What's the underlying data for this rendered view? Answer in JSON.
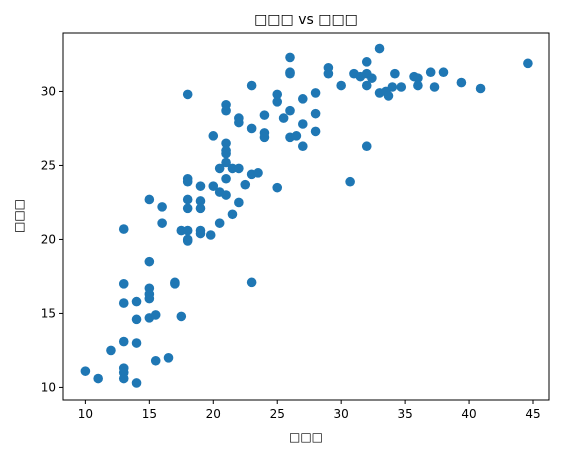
{
  "chart_data": {
    "type": "scatter",
    "title": "□□□ vs □□□",
    "xlabel": "□□□",
    "ylabel": "□□□",
    "xlim": [
      8.25,
      46.25
    ],
    "ylim": [
      9.15,
      33.95
    ],
    "xticks": [
      10,
      15,
      20,
      25,
      30,
      35,
      40,
      45
    ],
    "yticks": [
      10,
      15,
      20,
      25,
      30
    ],
    "grid": false,
    "marker_color": "#1f77b4",
    "points": [
      [
        10,
        11.1
      ],
      [
        11,
        10.6
      ],
      [
        12,
        12.5
      ],
      [
        13,
        20.7
      ],
      [
        13,
        17.0
      ],
      [
        13,
        15.7
      ],
      [
        13,
        13.1
      ],
      [
        13,
        11.3
      ],
      [
        13,
        11.0
      ],
      [
        13,
        10.6
      ],
      [
        14,
        15.8
      ],
      [
        14,
        14.6
      ],
      [
        14,
        13.0
      ],
      [
        14,
        10.3
      ],
      [
        15,
        22.7
      ],
      [
        15,
        18.5
      ],
      [
        15,
        16.7
      ],
      [
        15,
        16.3
      ],
      [
        15,
        16.0
      ],
      [
        15,
        14.7
      ],
      [
        15.5,
        14.9
      ],
      [
        15.5,
        11.8
      ],
      [
        16,
        22.2
      ],
      [
        16,
        21.1
      ],
      [
        16.5,
        12.0
      ],
      [
        17,
        17.1
      ],
      [
        17,
        17.0
      ],
      [
        17.5,
        20.6
      ],
      [
        17.5,
        14.8
      ],
      [
        18,
        29.8
      ],
      [
        18,
        24.1
      ],
      [
        18,
        23.9
      ],
      [
        18,
        22.7
      ],
      [
        18,
        22.1
      ],
      [
        18,
        20.6
      ],
      [
        18,
        20.0
      ],
      [
        18,
        19.9
      ],
      [
        19,
        23.6
      ],
      [
        19,
        22.6
      ],
      [
        19,
        22.1
      ],
      [
        19,
        20.6
      ],
      [
        19,
        20.4
      ],
      [
        19.8,
        20.3
      ],
      [
        20,
        27.0
      ],
      [
        20,
        23.6
      ],
      [
        20.5,
        24.8
      ],
      [
        20.5,
        23.2
      ],
      [
        20.5,
        21.1
      ],
      [
        21,
        29.1
      ],
      [
        21,
        28.7
      ],
      [
        21,
        26.5
      ],
      [
        21,
        26.0
      ],
      [
        21,
        25.8
      ],
      [
        21,
        25.2
      ],
      [
        21,
        24.1
      ],
      [
        21,
        23.0
      ],
      [
        21.5,
        24.8
      ],
      [
        21.5,
        21.7
      ],
      [
        22,
        28.2
      ],
      [
        22,
        27.9
      ],
      [
        22,
        24.8
      ],
      [
        22,
        22.5
      ],
      [
        22.5,
        23.7
      ],
      [
        23,
        30.4
      ],
      [
        23,
        27.5
      ],
      [
        23,
        24.4
      ],
      [
        23,
        17.1
      ],
      [
        23.5,
        24.5
      ],
      [
        24,
        28.4
      ],
      [
        24,
        27.2
      ],
      [
        24,
        26.9
      ],
      [
        25,
        29.8
      ],
      [
        25,
        29.3
      ],
      [
        25,
        23.5
      ],
      [
        25.5,
        28.2
      ],
      [
        26,
        32.3
      ],
      [
        26,
        31.3
      ],
      [
        26,
        31.2
      ],
      [
        26,
        28.7
      ],
      [
        26,
        26.9
      ],
      [
        26.5,
        27.0
      ],
      [
        27,
        29.5
      ],
      [
        27,
        27.8
      ],
      [
        27,
        26.3
      ],
      [
        28,
        29.9
      ],
      [
        28,
        28.5
      ],
      [
        28,
        27.3
      ],
      [
        29,
        31.6
      ],
      [
        29,
        31.2
      ],
      [
        30,
        30.4
      ],
      [
        30.7,
        23.9
      ],
      [
        31,
        31.2
      ],
      [
        31.5,
        31.0
      ],
      [
        32,
        32.0
      ],
      [
        32,
        31.2
      ],
      [
        32,
        30.4
      ],
      [
        32,
        26.3
      ],
      [
        32.4,
        30.9
      ],
      [
        33,
        32.9
      ],
      [
        33,
        29.9
      ],
      [
        33.5,
        30.0
      ],
      [
        33.7,
        29.7
      ],
      [
        34,
        30.3
      ],
      [
        34.2,
        31.2
      ],
      [
        34.7,
        30.3
      ],
      [
        35.7,
        31.0
      ],
      [
        36,
        30.9
      ],
      [
        36,
        30.4
      ],
      [
        37,
        31.3
      ],
      [
        37.3,
        30.3
      ],
      [
        38,
        31.3
      ],
      [
        39.4,
        30.6
      ],
      [
        40.9,
        30.2
      ],
      [
        44.6,
        31.9
      ]
    ]
  }
}
